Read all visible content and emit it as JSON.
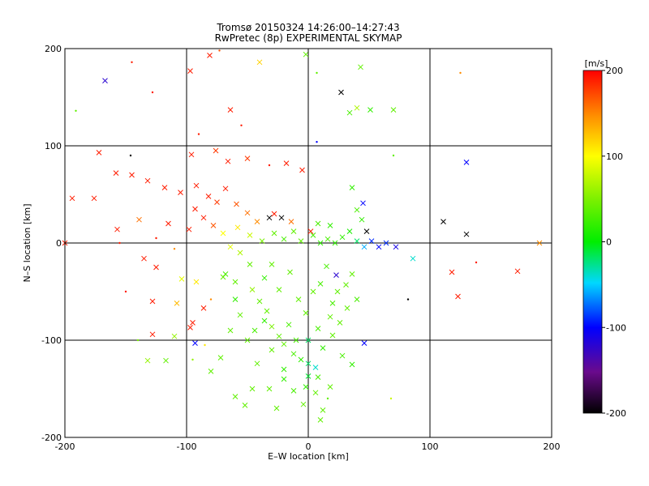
{
  "chart_data": {
    "type": "scatter",
    "title": "Tromsø 20150324 14:26:00–14:27:43",
    "subtitle": "RwPretec (8p) EXPERIMENTAL SKYMAP",
    "xlabel": "E–W location [km]",
    "ylabel": "N–S location [km]",
    "xlim": [
      -200,
      200
    ],
    "ylim": [
      -200,
      200
    ],
    "x_ticks": [
      "-200",
      "-100",
      "0",
      "100",
      "200"
    ],
    "y_ticks": [
      "-200",
      "-100",
      "0",
      "100",
      "200"
    ],
    "grid_lines_at": [
      -100,
      0,
      100
    ],
    "colorbar": {
      "unit_label": "[m/s]",
      "range": [
        -200,
        200
      ],
      "ticks": [
        "200",
        "100",
        "0",
        "-100",
        "-200"
      ],
      "colormap": "rainbow (black → purple → blue → cyan → green → yellow → red)"
    },
    "marker_types": [
      "cross",
      "dot"
    ],
    "points": [
      {
        "x": -167,
        "y": 167,
        "v": -120,
        "m": "x"
      },
      {
        "x": -145,
        "y": 186,
        "v": 190,
        "m": "d"
      },
      {
        "x": -128,
        "y": 155,
        "v": 190,
        "m": "d"
      },
      {
        "x": -97,
        "y": 177,
        "v": 190,
        "m": "x"
      },
      {
        "x": -81,
        "y": 193,
        "v": 190,
        "m": "x"
      },
      {
        "x": -73,
        "y": 198,
        "v": 170,
        "m": "d"
      },
      {
        "x": -40,
        "y": 186,
        "v": 120,
        "m": "x"
      },
      {
        "x": -2,
        "y": 194,
        "v": 40,
        "m": "x"
      },
      {
        "x": 43,
        "y": 181,
        "v": 40,
        "m": "x"
      },
      {
        "x": 27,
        "y": 155,
        "v": -200,
        "m": "x"
      },
      {
        "x": 40,
        "y": 139,
        "v": 70,
        "m": "x"
      },
      {
        "x": 34,
        "y": 134,
        "v": 30,
        "m": "x"
      },
      {
        "x": 51,
        "y": 137,
        "v": 20,
        "m": "x"
      },
      {
        "x": 70,
        "y": 137,
        "v": 40,
        "m": "x"
      },
      {
        "x": 125,
        "y": 175,
        "v": 150,
        "m": "d"
      },
      {
        "x": 7,
        "y": 175,
        "v": 40,
        "m": "d"
      },
      {
        "x": -191,
        "y": 136,
        "v": 40,
        "m": "d"
      },
      {
        "x": -64,
        "y": 137,
        "v": 190,
        "m": "x"
      },
      {
        "x": -55,
        "y": 121,
        "v": 190,
        "m": "d"
      },
      {
        "x": -90,
        "y": 112,
        "v": 190,
        "m": "d"
      },
      {
        "x": -172,
        "y": 93,
        "v": 190,
        "m": "x"
      },
      {
        "x": -146,
        "y": 90,
        "v": -200,
        "m": "d"
      },
      {
        "x": -96,
        "y": 91,
        "v": 190,
        "m": "x"
      },
      {
        "x": -76,
        "y": 95,
        "v": 180,
        "m": "x"
      },
      {
        "x": -66,
        "y": 84,
        "v": 190,
        "m": "x"
      },
      {
        "x": -50,
        "y": 87,
        "v": 180,
        "m": "x"
      },
      {
        "x": -32,
        "y": 80,
        "v": 190,
        "m": "d"
      },
      {
        "x": -18,
        "y": 82,
        "v": 190,
        "m": "x"
      },
      {
        "x": -5,
        "y": 75,
        "v": 190,
        "m": "x"
      },
      {
        "x": 7,
        "y": 104,
        "v": -100,
        "m": "d"
      },
      {
        "x": 36,
        "y": 57,
        "v": 20,
        "m": "x"
      },
      {
        "x": 45,
        "y": 41,
        "v": -100,
        "m": "x"
      },
      {
        "x": 70,
        "y": 90,
        "v": 40,
        "m": "d"
      },
      {
        "x": 130,
        "y": 83,
        "v": -100,
        "m": "x"
      },
      {
        "x": 111,
        "y": 22,
        "v": -200,
        "m": "x"
      },
      {
        "x": 130,
        "y": 9,
        "v": -200,
        "m": "x"
      },
      {
        "x": -194,
        "y": 46,
        "v": 190,
        "m": "x"
      },
      {
        "x": -176,
        "y": 46,
        "v": 190,
        "m": "x"
      },
      {
        "x": -158,
        "y": 72,
        "v": 190,
        "m": "x"
      },
      {
        "x": -145,
        "y": 70,
        "v": 190,
        "m": "x"
      },
      {
        "x": -132,
        "y": 64,
        "v": 190,
        "m": "x"
      },
      {
        "x": -118,
        "y": 57,
        "v": 190,
        "m": "x"
      },
      {
        "x": -105,
        "y": 52,
        "v": 190,
        "m": "x"
      },
      {
        "x": -92,
        "y": 59,
        "v": 190,
        "m": "x"
      },
      {
        "x": -82,
        "y": 48,
        "v": 190,
        "m": "x"
      },
      {
        "x": -75,
        "y": 42,
        "v": 180,
        "m": "x"
      },
      {
        "x": -68,
        "y": 56,
        "v": 190,
        "m": "x"
      },
      {
        "x": -59,
        "y": 40,
        "v": 170,
        "m": "x"
      },
      {
        "x": -50,
        "y": 31,
        "v": 160,
        "m": "x"
      },
      {
        "x": -42,
        "y": 22,
        "v": 150,
        "m": "x"
      },
      {
        "x": -93,
        "y": 35,
        "v": 190,
        "m": "x"
      },
      {
        "x": -86,
        "y": 26,
        "v": 190,
        "m": "x"
      },
      {
        "x": -78,
        "y": 18,
        "v": 170,
        "m": "x"
      },
      {
        "x": -98,
        "y": 14,
        "v": 190,
        "m": "x"
      },
      {
        "x": -115,
        "y": 20,
        "v": 190,
        "m": "x"
      },
      {
        "x": -139,
        "y": 24,
        "v": 160,
        "m": "x"
      },
      {
        "x": -157,
        "y": 14,
        "v": 190,
        "m": "x"
      },
      {
        "x": -200,
        "y": 0,
        "v": 190,
        "m": "x"
      },
      {
        "x": -155,
        "y": 0,
        "v": 190,
        "m": "d"
      },
      {
        "x": -125,
        "y": 5,
        "v": 190,
        "m": "d"
      },
      {
        "x": -110,
        "y": -6,
        "v": 150,
        "m": "d"
      },
      {
        "x": -135,
        "y": -16,
        "v": 190,
        "m": "x"
      },
      {
        "x": -125,
        "y": -25,
        "v": 190,
        "m": "x"
      },
      {
        "x": -150,
        "y": -50,
        "v": 190,
        "m": "d"
      },
      {
        "x": -128,
        "y": -60,
        "v": 190,
        "m": "x"
      },
      {
        "x": -108,
        "y": -62,
        "v": 130,
        "m": "x"
      },
      {
        "x": -95,
        "y": -82,
        "v": 190,
        "m": "x"
      },
      {
        "x": -97,
        "y": -87,
        "v": 190,
        "m": "x"
      },
      {
        "x": -110,
        "y": -96,
        "v": 60,
        "m": "x"
      },
      {
        "x": -117,
        "y": -121,
        "v": 40,
        "m": "x"
      },
      {
        "x": -132,
        "y": -121,
        "v": 60,
        "m": "x"
      },
      {
        "x": -95,
        "y": -120,
        "v": 60,
        "m": "d"
      },
      {
        "x": -85,
        "y": -105,
        "v": 110,
        "m": "d"
      },
      {
        "x": -93,
        "y": -103,
        "v": -100,
        "m": "x"
      },
      {
        "x": -104,
        "y": -37,
        "v": 90,
        "m": "x"
      },
      {
        "x": -86,
        "y": -67,
        "v": 190,
        "m": "x"
      },
      {
        "x": -80,
        "y": -58,
        "v": 150,
        "m": "d"
      },
      {
        "x": -92,
        "y": -40,
        "v": 110,
        "m": "x"
      },
      {
        "x": -68,
        "y": -32,
        "v": 30,
        "m": "x"
      },
      {
        "x": -60,
        "y": -58,
        "v": 20,
        "m": "x"
      },
      {
        "x": -56,
        "y": -74,
        "v": 40,
        "m": "x"
      },
      {
        "x": -46,
        "y": -48,
        "v": 60,
        "m": "x"
      },
      {
        "x": -40,
        "y": -60,
        "v": 40,
        "m": "x"
      },
      {
        "x": -34,
        "y": -70,
        "v": 40,
        "m": "x"
      },
      {
        "x": -30,
        "y": -86,
        "v": 50,
        "m": "x"
      },
      {
        "x": -24,
        "y": -96,
        "v": 40,
        "m": "x"
      },
      {
        "x": -20,
        "y": -104,
        "v": 40,
        "m": "x"
      },
      {
        "x": -12,
        "y": -114,
        "v": 30,
        "m": "x"
      },
      {
        "x": -6,
        "y": -120,
        "v": 20,
        "m": "x"
      },
      {
        "x": 0,
        "y": -124,
        "v": -20,
        "m": "x"
      },
      {
        "x": 6,
        "y": -128,
        "v": -40,
        "m": "x"
      },
      {
        "x": 12,
        "y": -108,
        "v": 20,
        "m": "x"
      },
      {
        "x": 20,
        "y": -95,
        "v": 40,
        "m": "x"
      },
      {
        "x": 26,
        "y": -82,
        "v": 40,
        "m": "x"
      },
      {
        "x": 32,
        "y": -67,
        "v": 40,
        "m": "x"
      },
      {
        "x": 40,
        "y": -58,
        "v": 30,
        "m": "x"
      },
      {
        "x": 46,
        "y": -103,
        "v": -100,
        "m": "x"
      },
      {
        "x": 31,
        "y": -43,
        "v": 40,
        "m": "x"
      },
      {
        "x": 23,
        "y": -33,
        "v": -120,
        "m": "x"
      },
      {
        "x": 15,
        "y": -24,
        "v": 30,
        "m": "x"
      },
      {
        "x": -15,
        "y": -30,
        "v": 40,
        "m": "x"
      },
      {
        "x": -24,
        "y": -48,
        "v": 40,
        "m": "x"
      },
      {
        "x": -42,
        "y": -124,
        "v": 40,
        "m": "x"
      },
      {
        "x": -46,
        "y": -150,
        "v": 40,
        "m": "x"
      },
      {
        "x": -52,
        "y": -167,
        "v": 40,
        "m": "x"
      },
      {
        "x": -60,
        "y": -158,
        "v": 40,
        "m": "x"
      },
      {
        "x": -32,
        "y": -150,
        "v": 40,
        "m": "x"
      },
      {
        "x": -20,
        "y": -140,
        "v": 20,
        "m": "x"
      },
      {
        "x": -12,
        "y": -152,
        "v": 30,
        "m": "x"
      },
      {
        "x": -4,
        "y": -166,
        "v": 40,
        "m": "x"
      },
      {
        "x": 10,
        "y": -182,
        "v": 40,
        "m": "x"
      },
      {
        "x": 16,
        "y": -160,
        "v": 40,
        "m": "d"
      },
      {
        "x": -72,
        "y": -118,
        "v": 40,
        "m": "x"
      },
      {
        "x": -80,
        "y": -132,
        "v": 40,
        "m": "x"
      },
      {
        "x": -128,
        "y": -94,
        "v": 190,
        "m": "x"
      },
      {
        "x": -140,
        "y": -100,
        "v": 50,
        "m": "d"
      },
      {
        "x": 0,
        "y": -100,
        "v": -20,
        "m": "x"
      },
      {
        "x": 8,
        "y": -88,
        "v": 30,
        "m": "x"
      },
      {
        "x": 18,
        "y": -76,
        "v": 40,
        "m": "x"
      },
      {
        "x": -2,
        "y": -72,
        "v": 40,
        "m": "x"
      },
      {
        "x": -8,
        "y": -58,
        "v": 40,
        "m": "x"
      },
      {
        "x": 4,
        "y": -50,
        "v": 40,
        "m": "x"
      },
      {
        "x": 10,
        "y": -42,
        "v": 30,
        "m": "x"
      },
      {
        "x": 24,
        "y": -50,
        "v": 40,
        "m": "x"
      },
      {
        "x": 20,
        "y": -62,
        "v": 30,
        "m": "x"
      },
      {
        "x": 36,
        "y": -32,
        "v": 40,
        "m": "x"
      },
      {
        "x": -36,
        "y": -36,
        "v": 20,
        "m": "x"
      },
      {
        "x": -30,
        "y": -22,
        "v": 40,
        "m": "x"
      },
      {
        "x": -48,
        "y": -22,
        "v": 40,
        "m": "x"
      },
      {
        "x": -56,
        "y": -10,
        "v": 70,
        "m": "x"
      },
      {
        "x": -64,
        "y": -4,
        "v": 90,
        "m": "x"
      },
      {
        "x": -70,
        "y": 10,
        "v": 100,
        "m": "x"
      },
      {
        "x": -58,
        "y": 16,
        "v": 110,
        "m": "x"
      },
      {
        "x": -48,
        "y": 8,
        "v": 80,
        "m": "x"
      },
      {
        "x": -38,
        "y": 2,
        "v": 50,
        "m": "x"
      },
      {
        "x": -28,
        "y": 10,
        "v": 40,
        "m": "x"
      },
      {
        "x": -20,
        "y": 4,
        "v": 30,
        "m": "x"
      },
      {
        "x": -12,
        "y": 12,
        "v": 40,
        "m": "x"
      },
      {
        "x": -6,
        "y": 2,
        "v": 40,
        "m": "x"
      },
      {
        "x": 4,
        "y": 8,
        "v": 30,
        "m": "x"
      },
      {
        "x": 10,
        "y": 0,
        "v": 20,
        "m": "x"
      },
      {
        "x": 16,
        "y": 4,
        "v": 30,
        "m": "x"
      },
      {
        "x": 22,
        "y": 0,
        "v": 20,
        "m": "x"
      },
      {
        "x": 28,
        "y": 6,
        "v": 20,
        "m": "x"
      },
      {
        "x": 34,
        "y": 12,
        "v": 10,
        "m": "x"
      },
      {
        "x": 40,
        "y": 2,
        "v": -20,
        "m": "x"
      },
      {
        "x": 46,
        "y": -4,
        "v": -60,
        "m": "x"
      },
      {
        "x": 52,
        "y": 2,
        "v": -90,
        "m": "x"
      },
      {
        "x": 58,
        "y": -4,
        "v": -100,
        "m": "x"
      },
      {
        "x": 64,
        "y": 0,
        "v": -90,
        "m": "x"
      },
      {
        "x": 72,
        "y": -4,
        "v": -110,
        "m": "x"
      },
      {
        "x": 86,
        "y": -16,
        "v": -40,
        "m": "x"
      },
      {
        "x": 48,
        "y": 12,
        "v": -200,
        "m": "x"
      },
      {
        "x": 44,
        "y": 24,
        "v": 20,
        "m": "x"
      },
      {
        "x": 40,
        "y": 34,
        "v": 30,
        "m": "x"
      },
      {
        "x": -32,
        "y": 26,
        "v": -200,
        "m": "x"
      },
      {
        "x": -22,
        "y": 26,
        "v": -200,
        "m": "x"
      },
      {
        "x": -28,
        "y": 30,
        "v": 190,
        "m": "x"
      },
      {
        "x": -14,
        "y": 22,
        "v": 160,
        "m": "x"
      },
      {
        "x": 2,
        "y": 12,
        "v": 190,
        "m": "x"
      },
      {
        "x": 18,
        "y": 18,
        "v": 20,
        "m": "x"
      },
      {
        "x": 8,
        "y": 20,
        "v": 30,
        "m": "x"
      },
      {
        "x": 118,
        "y": -30,
        "v": 190,
        "m": "x"
      },
      {
        "x": 123,
        "y": -55,
        "v": 190,
        "m": "x"
      },
      {
        "x": 172,
        "y": -29,
        "v": 190,
        "m": "x"
      },
      {
        "x": 190,
        "y": 0,
        "v": 150,
        "m": "x"
      },
      {
        "x": 138,
        "y": -20,
        "v": 190,
        "m": "d"
      },
      {
        "x": 82,
        "y": -58,
        "v": -200,
        "m": "d"
      },
      {
        "x": 68,
        "y": -160,
        "v": 80,
        "m": "d"
      },
      {
        "x": -70,
        "y": -35,
        "v": 40,
        "m": "x"
      },
      {
        "x": -60,
        "y": -40,
        "v": 40,
        "m": "x"
      },
      {
        "x": -36,
        "y": -80,
        "v": 20,
        "m": "x"
      },
      {
        "x": -16,
        "y": -84,
        "v": 30,
        "m": "x"
      },
      {
        "x": -10,
        "y": -100,
        "v": 30,
        "m": "x"
      },
      {
        "x": -30,
        "y": -110,
        "v": 40,
        "m": "x"
      },
      {
        "x": -50,
        "y": -100,
        "v": 40,
        "m": "x"
      },
      {
        "x": -64,
        "y": -90,
        "v": 40,
        "m": "x"
      },
      {
        "x": -44,
        "y": -90,
        "v": 30,
        "m": "x"
      },
      {
        "x": 28,
        "y": -116,
        "v": 30,
        "m": "x"
      },
      {
        "x": 36,
        "y": -125,
        "v": 20,
        "m": "x"
      },
      {
        "x": 8,
        "y": -138,
        "v": 30,
        "m": "x"
      },
      {
        "x": -2,
        "y": -148,
        "v": 20,
        "m": "x"
      },
      {
        "x": 18,
        "y": -148,
        "v": 40,
        "m": "x"
      },
      {
        "x": 6,
        "y": -154,
        "v": 40,
        "m": "x"
      },
      {
        "x": 12,
        "y": -172,
        "v": 40,
        "m": "x"
      },
      {
        "x": -26,
        "y": -170,
        "v": 40,
        "m": "x"
      },
      {
        "x": -20,
        "y": -130,
        "v": 20,
        "m": "x"
      },
      {
        "x": 0,
        "y": -137,
        "v": -10,
        "m": "x"
      }
    ]
  }
}
